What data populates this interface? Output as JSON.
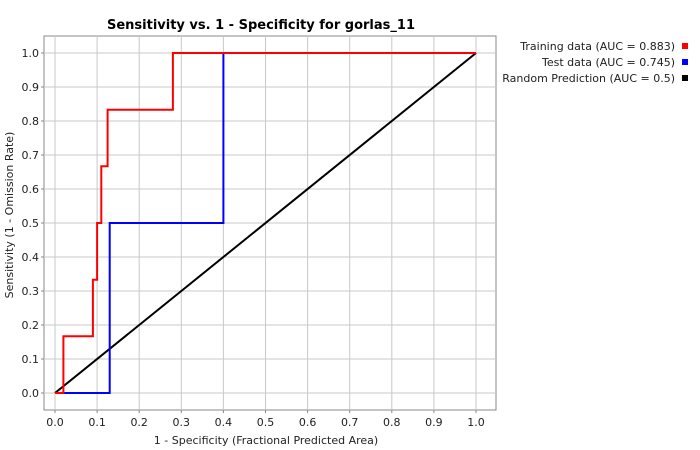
{
  "chart_data": {
    "type": "line",
    "title": "Sensitivity vs. 1 - Specificity for gorlas_11",
    "xlabel": "1 - Specificity  (Fractional Predicted Area)",
    "ylabel": "Sensitivity  (1 - Omission Rate)",
    "xlim": [
      0,
      1
    ],
    "ylim": [
      0,
      1
    ],
    "xticks": [
      "0.0",
      "0.1",
      "0.2",
      "0.3",
      "0.4",
      "0.5",
      "0.6",
      "0.7",
      "0.8",
      "0.9",
      "1.0"
    ],
    "yticks": [
      "0.0",
      "0.1",
      "0.2",
      "0.3",
      "0.4",
      "0.5",
      "0.6",
      "0.7",
      "0.8",
      "0.9",
      "1.0"
    ],
    "grid": true,
    "legend_position": "right",
    "series": [
      {
        "name": "Training data (AUC = 0.883)",
        "color": "#ff0000",
        "x": [
          0.0,
          0.02,
          0.02,
          0.09,
          0.09,
          0.1,
          0.1,
          0.11,
          0.11,
          0.125,
          0.125,
          0.145,
          0.145,
          0.28,
          0.28,
          1.0
        ],
        "y": [
          0.0,
          0.0,
          0.167,
          0.167,
          0.333,
          0.333,
          0.5,
          0.5,
          0.667,
          0.667,
          0.833,
          0.833,
          0.833,
          0.833,
          1.0,
          1.0
        ]
      },
      {
        "name": "Test data (AUC = 0.745)",
        "color": "#0000ff",
        "x": [
          0.0,
          0.13,
          0.13,
          0.4,
          0.4,
          1.0
        ],
        "y": [
          0.0,
          0.0,
          0.5,
          0.5,
          1.0,
          1.0
        ]
      },
      {
        "name": "Random Prediction (AUC = 0.5)",
        "color": "#000000",
        "x": [
          0.0,
          1.0
        ],
        "y": [
          0.0,
          1.0
        ]
      }
    ]
  }
}
